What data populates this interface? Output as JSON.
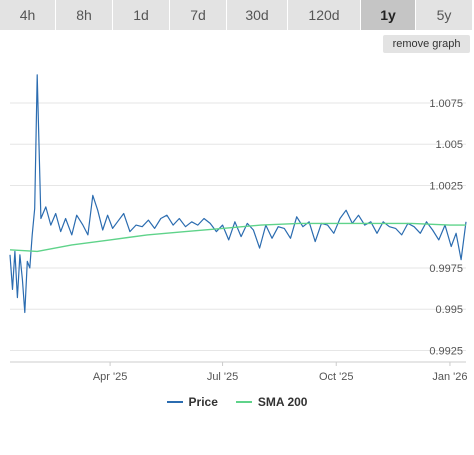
{
  "range_tabs": [
    {
      "label": "4h",
      "active": false
    },
    {
      "label": "8h",
      "active": false
    },
    {
      "label": "1d",
      "active": false
    },
    {
      "label": "7d",
      "active": false
    },
    {
      "label": "30d",
      "active": false
    },
    {
      "label": "120d",
      "active": false
    },
    {
      "label": "1y",
      "active": true
    },
    {
      "label": "5y",
      "active": false
    }
  ],
  "remove_graph_label": "remove graph",
  "colors": {
    "price": "#2b6cb0",
    "sma": "#5fd38a",
    "grid": "#e6e6e6",
    "tab_bg": "#e3e3e3",
    "tab_active_bg": "#c5c5c5"
  },
  "chart_data": {
    "type": "line",
    "x_tick_labels": [
      "Apr '25",
      "Jul '25",
      "Oct '25",
      "Jan '26"
    ],
    "y_ticks": [
      1.0075,
      1.005,
      1.0025,
      0.9975,
      0.995,
      0.9925
    ],
    "y_tick_labels": [
      "1.0075",
      "1.005",
      "1.0025",
      "0.9975",
      "0.995",
      "0.9925"
    ],
    "ylim": [
      0.9918,
      1.0098
    ],
    "xlim": [
      "2025-01-10",
      "2026-01-14"
    ],
    "legend_position": "bottom",
    "series": [
      {
        "name": "Price",
        "color": "#2b6cb0",
        "x": [
          "2025-01-10",
          "2025-01-12",
          "2025-01-14",
          "2025-01-16",
          "2025-01-18",
          "2025-01-20",
          "2025-01-22",
          "2025-01-24",
          "2025-01-26",
          "2025-01-28",
          "2025-01-30",
          "2025-02-01",
          "2025-02-04",
          "2025-02-08",
          "2025-02-12",
          "2025-02-16",
          "2025-02-20",
          "2025-02-24",
          "2025-03-01",
          "2025-03-05",
          "2025-03-10",
          "2025-03-14",
          "2025-03-18",
          "2025-03-22",
          "2025-03-26",
          "2025-03-30",
          "2025-04-03",
          "2025-04-07",
          "2025-04-12",
          "2025-04-17",
          "2025-04-22",
          "2025-04-27",
          "2025-05-02",
          "2025-05-07",
          "2025-05-12",
          "2025-05-17",
          "2025-05-22",
          "2025-05-27",
          "2025-06-01",
          "2025-06-06",
          "2025-06-11",
          "2025-06-16",
          "2025-06-21",
          "2025-06-26",
          "2025-07-01",
          "2025-07-06",
          "2025-07-11",
          "2025-07-16",
          "2025-07-21",
          "2025-07-26",
          "2025-07-31",
          "2025-08-05",
          "2025-08-10",
          "2025-08-15",
          "2025-08-20",
          "2025-08-25",
          "2025-08-30",
          "2025-09-04",
          "2025-09-09",
          "2025-09-14",
          "2025-09-19",
          "2025-09-24",
          "2025-09-29",
          "2025-10-04",
          "2025-10-09",
          "2025-10-14",
          "2025-10-19",
          "2025-10-24",
          "2025-10-29",
          "2025-11-03",
          "2025-11-08",
          "2025-11-13",
          "2025-11-18",
          "2025-11-23",
          "2025-11-28",
          "2025-12-03",
          "2025-12-08",
          "2025-12-13",
          "2025-12-18",
          "2025-12-23",
          "2025-12-28",
          "2026-01-02",
          "2026-01-06",
          "2026-01-10",
          "2026-01-14"
        ],
        "values": [
          0.9983,
          0.9962,
          0.9985,
          0.9957,
          0.9983,
          0.9968,
          0.9948,
          0.9979,
          0.9975,
          0.9995,
          1.0011,
          1.0092,
          1.0005,
          1.0012,
          1.0001,
          1.0008,
          0.9997,
          1.0005,
          0.9995,
          1.0007,
          1.0001,
          0.9995,
          1.0019,
          1.001,
          0.9998,
          1.0007,
          0.9999,
          1.0003,
          1.0008,
          0.9997,
          1.0001,
          1.0,
          1.0004,
          0.9999,
          1.0005,
          1.0007,
          1.0001,
          1.0005,
          1.0,
          1.0003,
          1.0001,
          1.0005,
          1.0002,
          0.9997,
          1.0001,
          0.9992,
          1.0003,
          0.9994,
          1.0002,
          0.9998,
          0.9987,
          1.0001,
          0.9993,
          1.0,
          0.9999,
          0.9993,
          1.0006,
          1.0,
          1.0003,
          0.9991,
          1.0002,
          1.0001,
          0.9996,
          1.0005,
          1.001,
          1.0002,
          1.0007,
          1.0001,
          1.0003,
          0.9996,
          1.0003,
          1.0,
          0.9999,
          0.9995,
          1.0002,
          1.0,
          0.9996,
          1.0003,
          0.9998,
          0.9992,
          1.0001,
          0.9988,
          0.9996,
          0.998,
          1.0003
        ]
      },
      {
        "name": "SMA 200",
        "color": "#5fd38a",
        "x": [
          "2025-01-10",
          "2025-02-01",
          "2025-03-01",
          "2025-04-01",
          "2025-05-01",
          "2025-06-01",
          "2025-07-01",
          "2025-08-01",
          "2025-09-01",
          "2025-10-01",
          "2025-11-01",
          "2025-12-01",
          "2026-01-01",
          "2026-01-14"
        ],
        "values": [
          0.9986,
          0.9985,
          0.9989,
          0.9992,
          0.9995,
          0.9997,
          0.9999,
          1.0001,
          1.0002,
          1.0002,
          1.0002,
          1.0002,
          1.0001,
          1.0001
        ]
      }
    ]
  }
}
